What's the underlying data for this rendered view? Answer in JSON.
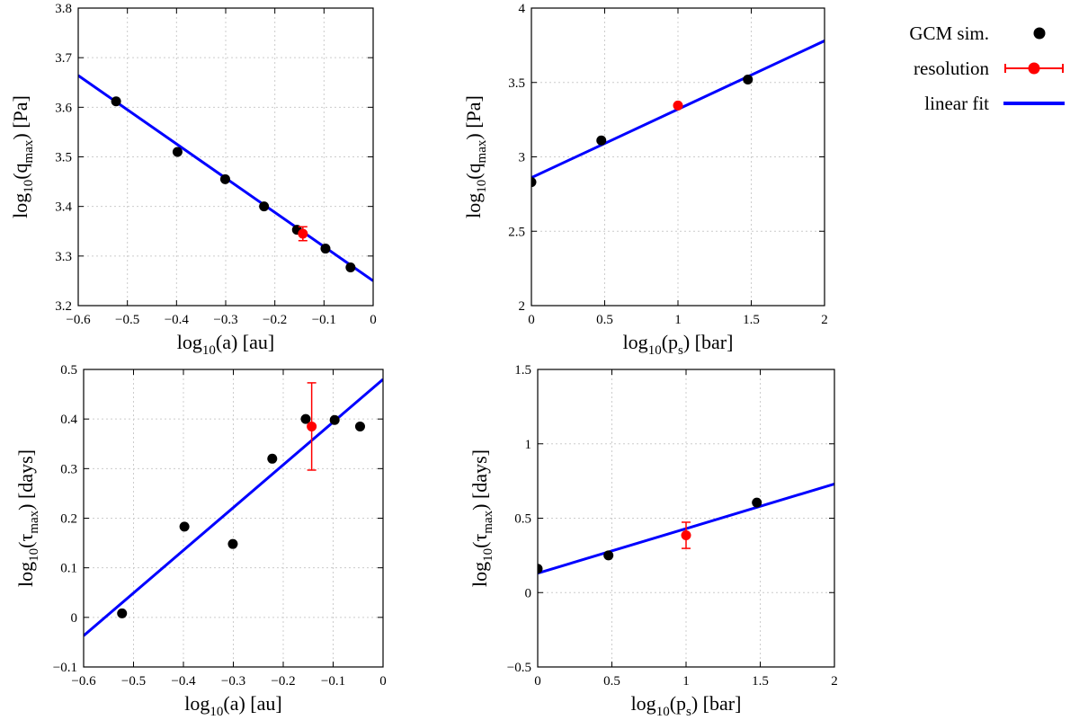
{
  "legend": {
    "items": [
      {
        "label": "GCM sim.",
        "kind": "point",
        "color": "#000000"
      },
      {
        "label": "resolution",
        "kind": "errorbar",
        "color": "#ff0000"
      },
      {
        "label": "linear fit",
        "kind": "line",
        "color": "#0000ff"
      }
    ]
  },
  "chart_data": [
    {
      "type": "scatter",
      "id": "qmax-vs-a",
      "xlabel": {
        "prefix": "log",
        "sub": "10",
        "mid": "(a) [au]",
        "sub2": "",
        "suffix": ""
      },
      "ylabel": {
        "prefix": "log",
        "sub": "10",
        "mid": "(q",
        "sub2": "max",
        "suffix": ") [Pa]"
      },
      "xlim": [
        -0.6,
        0
      ],
      "ylim": [
        3.2,
        3.8
      ],
      "xticks": [
        -0.6,
        -0.5,
        -0.4,
        -0.3,
        -0.2,
        -0.1,
        0
      ],
      "xtick_labels": [
        "−0.6",
        "−0.5",
        "−0.4",
        "−0.3",
        "−0.2",
        "−0.1",
        "0"
      ],
      "yticks": [
        3.2,
        3.3,
        3.4,
        3.5,
        3.6,
        3.7,
        3.8
      ],
      "ytick_labels": [
        "3.2",
        "3.3",
        "3.4",
        "3.5",
        "3.6",
        "3.7",
        "3.8"
      ],
      "grid": true,
      "series": [
        {
          "name": "GCM sim.",
          "x": [
            -0.523,
            -0.398,
            -0.301,
            -0.222,
            -0.155,
            -0.097,
            -0.046
          ],
          "y": [
            3.612,
            3.51,
            3.455,
            3.4,
            3.353,
            3.315,
            3.277
          ]
        },
        {
          "name": "resolution",
          "x": [
            -0.143
          ],
          "y": [
            3.345
          ],
          "yerr": [
            0.014
          ]
        },
        {
          "name": "linear fit",
          "line": [
            [
              -0.6,
              3.664
            ],
            [
              0,
              3.25
            ]
          ]
        }
      ]
    },
    {
      "type": "scatter",
      "id": "qmax-vs-ps",
      "xlabel": {
        "prefix": "log",
        "sub": "10",
        "mid": "(p",
        "sub2": "s",
        "suffix": ") [bar]"
      },
      "ylabel": {
        "prefix": "log",
        "sub": "10",
        "mid": "(q",
        "sub2": "max",
        "suffix": ") [Pa]"
      },
      "xlim": [
        0,
        2
      ],
      "ylim": [
        2,
        4
      ],
      "xticks": [
        0,
        0.5,
        1,
        1.5,
        2
      ],
      "xtick_labels": [
        "0",
        "0.5",
        "1",
        "1.5",
        "2"
      ],
      "yticks": [
        2,
        2.5,
        3,
        3.5,
        4
      ],
      "ytick_labels": [
        "2",
        "2.5",
        "3",
        "3.5",
        "4"
      ],
      "grid": true,
      "series": [
        {
          "name": "GCM sim.",
          "x": [
            0,
            0.477,
            1.477
          ],
          "y": [
            2.83,
            3.11,
            3.52
          ]
        },
        {
          "name": "resolution",
          "x": [
            1.0
          ],
          "y": [
            3.345
          ],
          "yerr": [
            0.0
          ]
        },
        {
          "name": "linear fit",
          "line": [
            [
              0,
              2.86
            ],
            [
              2,
              3.78
            ]
          ]
        }
      ]
    },
    {
      "type": "scatter",
      "id": "taumax-vs-a",
      "xlabel": {
        "prefix": "log",
        "sub": "10",
        "mid": "(a) [au]",
        "sub2": "",
        "suffix": ""
      },
      "ylabel": {
        "prefix": "log",
        "sub": "10",
        "mid": "(τ",
        "sub2": "max",
        "suffix": ") [days]"
      },
      "xlim": [
        -0.6,
        0
      ],
      "ylim": [
        -0.1,
        0.5
      ],
      "xticks": [
        -0.6,
        -0.5,
        -0.4,
        -0.3,
        -0.2,
        -0.1,
        0
      ],
      "xtick_labels": [
        "−0.6",
        "−0.5",
        "−0.4",
        "−0.3",
        "−0.2",
        "−0.1",
        "0"
      ],
      "yticks": [
        -0.1,
        0,
        0.1,
        0.2,
        0.3,
        0.4,
        0.5
      ],
      "ytick_labels": [
        "−0.1",
        "0",
        "0.1",
        "0.2",
        "0.3",
        "0.4",
        "0.5"
      ],
      "grid": true,
      "series": [
        {
          "name": "GCM sim.",
          "x": [
            -0.523,
            -0.398,
            -0.301,
            -0.222,
            -0.155,
            -0.097,
            -0.046
          ],
          "y": [
            0.008,
            0.183,
            0.148,
            0.32,
            0.4,
            0.398,
            0.385
          ]
        },
        {
          "name": "resolution",
          "x": [
            -0.143
          ],
          "y": [
            0.385
          ],
          "yerr": [
            0.088
          ]
        },
        {
          "name": "linear fit",
          "line": [
            [
              -0.6,
              -0.037
            ],
            [
              0,
              0.48
            ]
          ]
        }
      ]
    },
    {
      "type": "scatter",
      "id": "taumax-vs-ps",
      "xlabel": {
        "prefix": "log",
        "sub": "10",
        "mid": "(p",
        "sub2": "s",
        "suffix": ") [bar]"
      },
      "ylabel": {
        "prefix": "log",
        "sub": "10",
        "mid": "(τ",
        "sub2": "max",
        "suffix": ") [days]"
      },
      "xlim": [
        0,
        2
      ],
      "ylim": [
        -0.5,
        1.5
      ],
      "xticks": [
        0,
        0.5,
        1,
        1.5,
        2
      ],
      "xtick_labels": [
        "0",
        "0.5",
        "1",
        "1.5",
        "2"
      ],
      "yticks": [
        -0.5,
        0,
        0.5,
        1,
        1.5
      ],
      "ytick_labels": [
        "−0.5",
        "0",
        "0.5",
        "1",
        "1.5"
      ],
      "grid": true,
      "series": [
        {
          "name": "GCM sim.",
          "x": [
            0,
            0.477,
            1.477
          ],
          "y": [
            0.16,
            0.25,
            0.605
          ]
        },
        {
          "name": "resolution",
          "x": [
            1.0
          ],
          "y": [
            0.385
          ],
          "yerr": [
            0.088
          ]
        },
        {
          "name": "linear fit",
          "line": [
            [
              0,
              0.13
            ],
            [
              2,
              0.73
            ]
          ]
        }
      ]
    }
  ]
}
